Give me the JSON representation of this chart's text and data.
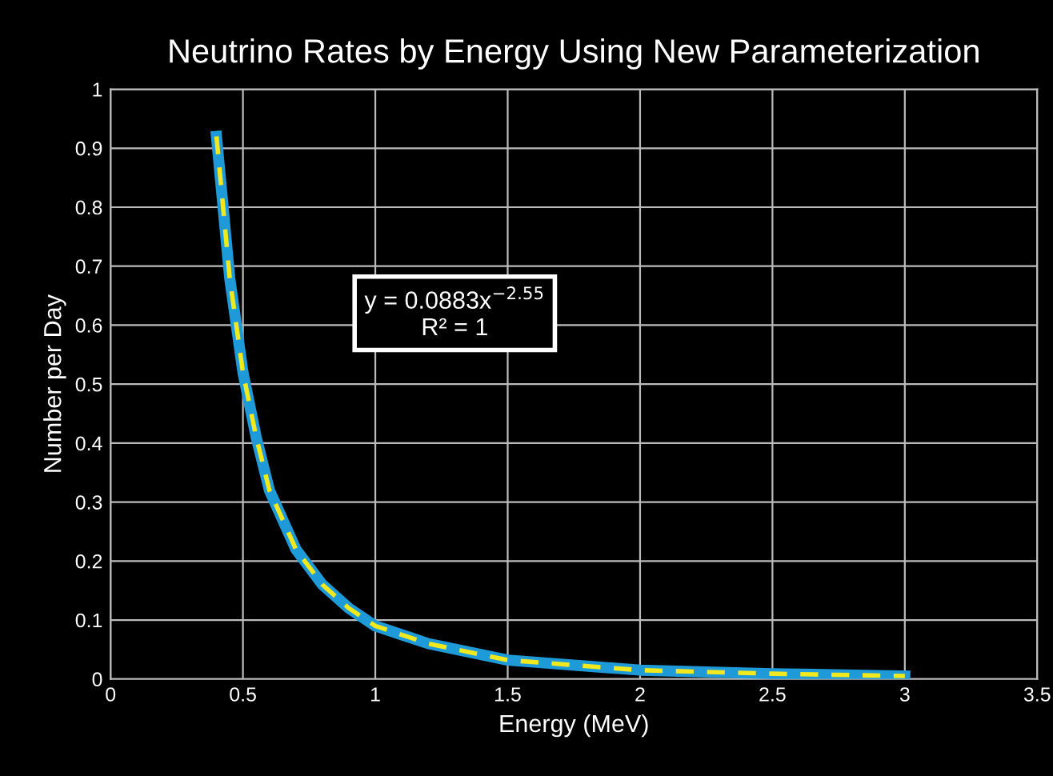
{
  "chart_data": {
    "type": "line",
    "title": "Neutrino Rates by Energy Using New Parameterization",
    "xlabel": "Energy (MeV)",
    "ylabel": "Number per Day",
    "series": [
      {
        "color": "#1f9ad8",
        "x": [
          0.4,
          0.45,
          0.5,
          0.55,
          0.6,
          0.7,
          0.8,
          0.9,
          1.0,
          1.2,
          1.5,
          2.0,
          2.5,
          3.0
        ],
        "values": [
          0.92,
          0.68,
          0.52,
          0.41,
          0.32,
          0.22,
          0.16,
          0.12,
          0.09,
          0.06,
          0.032,
          0.015,
          0.009,
          0.005
        ],
        "line_style": "solid"
      },
      {
        "color": "#f2e81e",
        "x": [
          0.4,
          0.45,
          0.5,
          0.55,
          0.6,
          0.7,
          0.8,
          0.9,
          1.0,
          1.2,
          1.5,
          2.0,
          2.5,
          3.0
        ],
        "values": [
          0.92,
          0.68,
          0.52,
          0.41,
          0.32,
          0.22,
          0.16,
          0.12,
          0.09,
          0.06,
          0.032,
          0.015,
          0.009,
          0.005
        ],
        "line_style": "dashed"
      }
    ],
    "annotations": [
      "y = 0.0883x$^{−2.55}$\nR² = 1"
    ],
    "xlim": [
      0,
      3.5
    ],
    "xticks": [
      0,
      0.5,
      1,
      1.5,
      2,
      2.5,
      3,
      3.5
    ],
    "ylim": [
      0,
      1
    ],
    "yticks": [
      0,
      0.1,
      0.2,
      0.3,
      0.4,
      0.5,
      0.6,
      0.7,
      0.8,
      0.9,
      1
    ],
    "grid": true,
    "marker": "none"
  }
}
